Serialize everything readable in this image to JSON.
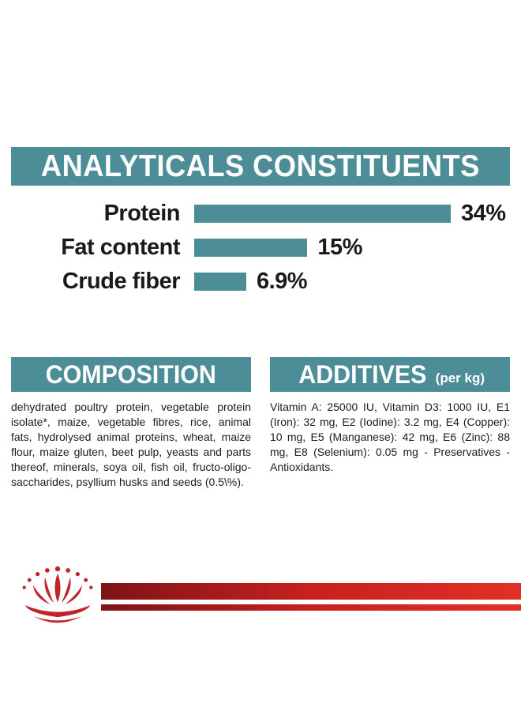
{
  "theme": {
    "teal": "#4d8d97",
    "brand_red": "#c1232b",
    "brand_red_dark": "#7e1316",
    "text": "#1c1c1c",
    "background": "#ffffff"
  },
  "analyticals": {
    "title": "ANALYTICALS CONSTITUENTS"
  },
  "chart_data": {
    "type": "bar",
    "orientation": "horizontal",
    "title": "ANALYTICALS CONSTITUENTS",
    "categories": [
      "Protein",
      "Fat content",
      "Crude fiber"
    ],
    "values": [
      34,
      15,
      6.9
    ],
    "value_labels": [
      "34%",
      "15%",
      "6.9%"
    ],
    "bar_color": "#4d8d97",
    "xlim": [
      0,
      34
    ],
    "grid": false,
    "legend": false
  },
  "composition": {
    "title": "COMPOSITION",
    "text": "dehydrated poultry protein, vegetable protein isolate*, maize, vegetable fibres, rice, animal fats, hydrolysed animal proteins, wheat, maize flour, maize gluten, beet pulp, yeasts and parts thereof, minerals, soya oil, fish oil, fructo-oligo-saccharides, psyllium husks and seeds (0.5\\%)."
  },
  "additives": {
    "title": "ADDITIVES",
    "unit": "(per kg)",
    "text": "Vitamin A: 25000 IU, Vitamin D3: 1000 IU, E1 (Iron): 32 mg, E2 (Iodine): 3.2 mg, E4 (Copper): 10 mg, E5 (Manganese): 42 mg, E6 (Zinc): 88 mg, E8 (Selenium): 0.05 mg - Preservatives - Antioxidants."
  },
  "footer": {
    "brand_mark": "royal-canin-crown-logo"
  }
}
